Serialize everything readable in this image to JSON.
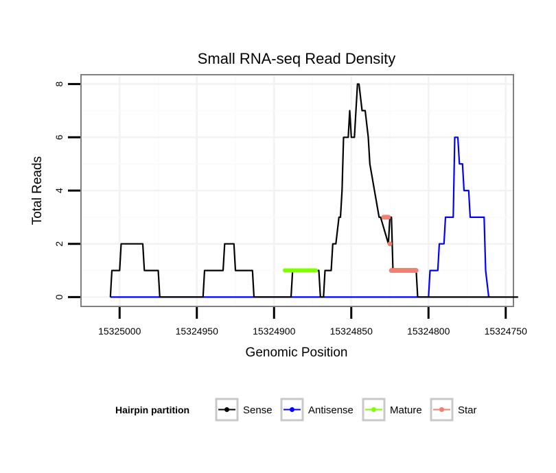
{
  "chart_data": {
    "type": "line",
    "title": "Small RNA-seq Read Density",
    "xlabel": "Genomic Position",
    "ylabel": "Total Reads",
    "xlim": [
      15325025,
      15324745
    ],
    "x_reversed": true,
    "ylim": [
      -0.35,
      8.35
    ],
    "xticks": [
      15325000,
      15324950,
      15324900,
      15324850,
      15324800,
      15324750
    ],
    "xtick_labels": [
      "15325000",
      "15324950",
      "15324900",
      "15324850",
      "15324800",
      "15324750"
    ],
    "yticks": [
      0,
      2,
      4,
      6,
      8
    ],
    "ytick_labels": [
      "0",
      "2",
      "4",
      "6",
      "8"
    ],
    "grid": true,
    "legend": {
      "title": "Hairpin partition",
      "position": "bottom",
      "entries": [
        "Sense",
        "Antisense",
        "Mature",
        "Star"
      ]
    },
    "series": [
      {
        "name": "Sense",
        "color": "#000000",
        "style": "line",
        "x": [
          15325006,
          15325005,
          15325000,
          15324999,
          15324985,
          15324984,
          15324975,
          15324974,
          15324946,
          15324945,
          15324933,
          15324932,
          15324926,
          15324925,
          15324914,
          15324913,
          15324889,
          15324888,
          15324871,
          15324870,
          15324868,
          15324867,
          15324863,
          15324862,
          15324860,
          15324858,
          15324857,
          15324856,
          15324855,
          15324852,
          15324851,
          15324850,
          15324848,
          15324846,
          15324845,
          15324843,
          15324841,
          15324839,
          15324838,
          15324832,
          15324831,
          15324826,
          15324825,
          15324824,
          15324823,
          15324808,
          15324807,
          15324742
        ],
        "y": [
          0,
          1,
          1,
          2,
          2,
          1,
          1,
          0,
          0,
          1,
          1,
          2,
          2,
          1,
          1,
          0,
          0,
          1,
          1,
          0,
          0,
          1,
          1,
          2,
          2,
          3,
          3,
          4,
          6,
          6,
          7,
          6,
          6,
          8,
          8,
          7,
          7,
          6,
          5,
          3,
          3,
          2,
          3,
          3,
          1,
          1,
          0,
          0
        ]
      },
      {
        "name": "Antisense",
        "color": "#0000ff",
        "style": "line",
        "x": [
          15325006,
          15324800,
          15324799,
          15324794,
          15324793,
          15324790,
          15324789,
          15324784,
          15324783,
          15324781,
          15324780,
          15324778,
          15324777,
          15324774,
          15324773,
          15324770,
          15324769,
          15324764,
          15324763,
          15324761,
          15324760
        ],
        "y": [
          0,
          0,
          1,
          1,
          2,
          2,
          3,
          3,
          6,
          6,
          5,
          5,
          4,
          4,
          3,
          3,
          3,
          3,
          1,
          0,
          0
        ]
      },
      {
        "name": "Mature",
        "color": "#7fff00",
        "style": "segment",
        "x": [
          15324893,
          15324873
        ],
        "y": [
          1,
          1
        ]
      },
      {
        "name": "Star",
        "color": "#f08070",
        "style": "points",
        "points": [
          {
            "x": [
              15324829,
              15324826
            ],
            "y": [
              3,
              3
            ]
          },
          {
            "x": [
              15324825,
              15324825
            ],
            "y": [
              2,
              2
            ]
          },
          {
            "x": [
              15324824,
              15324808
            ],
            "y": [
              1,
              1
            ]
          }
        ]
      }
    ]
  }
}
